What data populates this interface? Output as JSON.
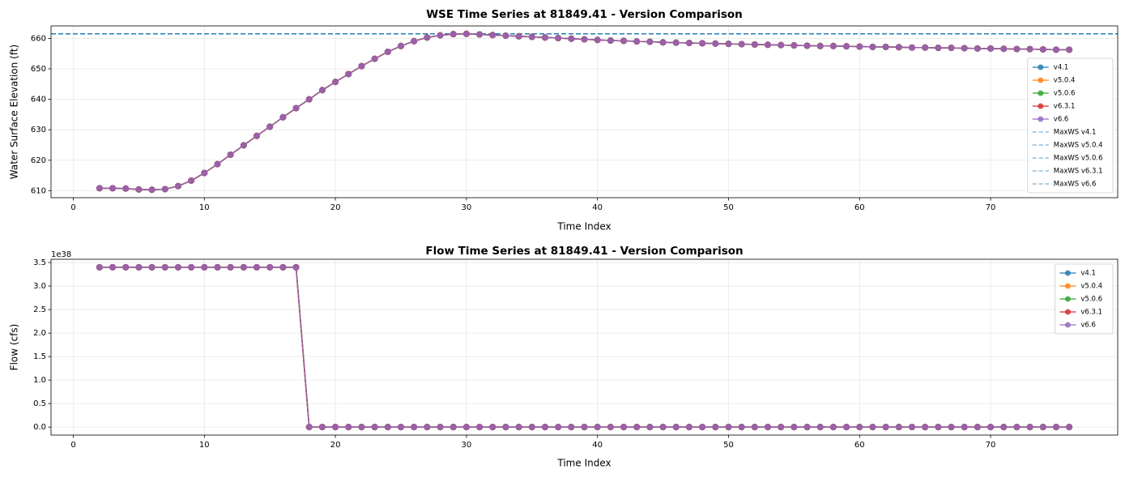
{
  "chart_data": [
    {
      "type": "line",
      "title": "WSE Time Series at 81849.41 - Version Comparison",
      "xlabel": "Time Index",
      "ylabel": "Water Surface Elevation (ft)",
      "x": [
        2,
        3,
        4,
        5,
        6,
        7,
        8,
        9,
        10,
        11,
        12,
        13,
        14,
        15,
        16,
        17,
        18,
        19,
        20,
        21,
        22,
        23,
        24,
        25,
        26,
        27,
        28,
        29,
        30,
        31,
        32,
        33,
        34,
        35,
        36,
        37,
        38,
        39,
        40,
        41,
        42,
        43,
        44,
        45,
        46,
        47,
        48,
        49,
        50,
        51,
        52,
        53,
        54,
        55,
        56,
        57,
        58,
        59,
        60,
        61,
        62,
        63,
        64,
        65,
        66,
        67,
        68,
        69,
        70,
        71,
        72,
        73,
        74,
        75,
        76
      ],
      "series": [
        {
          "name": "v4.1",
          "color": "#1f77b4",
          "values": [
            610.8,
            610.8,
            610.7,
            610.4,
            610.3,
            610.5,
            611.5,
            613.3,
            615.8,
            618.7,
            621.8,
            624.9,
            628.0,
            631.0,
            634.1,
            637.1,
            640.0,
            643.0,
            645.7,
            648.3,
            650.9,
            653.3,
            655.6,
            657.5,
            659.1,
            660.3,
            661.0,
            661.4,
            661.5,
            661.3,
            661.1,
            660.9,
            660.7,
            660.5,
            660.3,
            660.1,
            659.9,
            659.7,
            659.5,
            659.3,
            659.2,
            659.0,
            658.9,
            658.7,
            658.6,
            658.5,
            658.4,
            658.3,
            658.2,
            658.1,
            658.0,
            657.9,
            657.8,
            657.7,
            657.6,
            657.5,
            657.5,
            657.4,
            657.3,
            657.2,
            657.2,
            657.1,
            657.0,
            657.0,
            656.9,
            656.9,
            656.8,
            656.7,
            656.7,
            656.6,
            656.5,
            656.5,
            656.4,
            656.3,
            656.3
          ]
        },
        {
          "name": "v5.0.4",
          "color": "#ff7f0e",
          "values": [
            610.8,
            610.8,
            610.7,
            610.4,
            610.3,
            610.5,
            611.5,
            613.3,
            615.8,
            618.7,
            621.8,
            624.9,
            628.0,
            631.0,
            634.1,
            637.1,
            640.0,
            643.0,
            645.7,
            648.3,
            650.9,
            653.3,
            655.6,
            657.5,
            659.1,
            660.3,
            661.0,
            661.4,
            661.5,
            661.3,
            661.1,
            660.9,
            660.7,
            660.5,
            660.3,
            660.1,
            659.9,
            659.7,
            659.5,
            659.3,
            659.2,
            659.0,
            658.9,
            658.7,
            658.6,
            658.5,
            658.4,
            658.3,
            658.2,
            658.1,
            658.0,
            657.9,
            657.8,
            657.7,
            657.6,
            657.5,
            657.5,
            657.4,
            657.3,
            657.2,
            657.2,
            657.1,
            657.0,
            657.0,
            656.9,
            656.9,
            656.8,
            656.7,
            656.7,
            656.6,
            656.5,
            656.5,
            656.4,
            656.3,
            656.3
          ]
        },
        {
          "name": "v5.0.6",
          "color": "#2ca02c",
          "values": [
            610.8,
            610.8,
            610.7,
            610.4,
            610.3,
            610.5,
            611.5,
            613.3,
            615.8,
            618.7,
            621.8,
            624.9,
            628.0,
            631.0,
            634.1,
            637.1,
            640.0,
            643.0,
            645.7,
            648.3,
            650.9,
            653.3,
            655.6,
            657.5,
            659.1,
            660.3,
            661.0,
            661.4,
            661.5,
            661.3,
            661.1,
            660.9,
            660.7,
            660.5,
            660.3,
            660.1,
            659.9,
            659.7,
            659.5,
            659.3,
            659.2,
            659.0,
            658.9,
            658.7,
            658.6,
            658.5,
            658.4,
            658.3,
            658.2,
            658.1,
            658.0,
            657.9,
            657.8,
            657.7,
            657.6,
            657.5,
            657.5,
            657.4,
            657.3,
            657.2,
            657.2,
            657.1,
            657.0,
            657.0,
            656.9,
            656.9,
            656.8,
            656.7,
            656.7,
            656.6,
            656.5,
            656.5,
            656.4,
            656.3,
            656.3
          ]
        },
        {
          "name": "v6.3.1",
          "color": "#d62728",
          "values": [
            610.8,
            610.8,
            610.7,
            610.4,
            610.3,
            610.5,
            611.5,
            613.3,
            615.8,
            618.7,
            621.8,
            624.9,
            628.0,
            631.0,
            634.1,
            637.1,
            640.0,
            643.0,
            645.7,
            648.3,
            650.9,
            653.3,
            655.6,
            657.5,
            659.1,
            660.3,
            661.0,
            661.4,
            661.5,
            661.3,
            661.1,
            660.9,
            660.7,
            660.5,
            660.3,
            660.1,
            659.9,
            659.7,
            659.5,
            659.3,
            659.2,
            659.0,
            658.9,
            658.7,
            658.6,
            658.5,
            658.4,
            658.3,
            658.2,
            658.1,
            658.0,
            657.9,
            657.8,
            657.7,
            657.6,
            657.5,
            657.5,
            657.4,
            657.3,
            657.2,
            657.2,
            657.1,
            657.0,
            657.0,
            656.9,
            656.9,
            656.8,
            656.7,
            656.7,
            656.6,
            656.5,
            656.5,
            656.4,
            656.3,
            656.3
          ]
        },
        {
          "name": "v6.6",
          "color": "#9467bd",
          "values": [
            610.8,
            610.8,
            610.7,
            610.4,
            610.3,
            610.5,
            611.5,
            613.3,
            615.8,
            618.7,
            621.8,
            624.9,
            628.0,
            631.0,
            634.1,
            637.1,
            640.0,
            643.0,
            645.7,
            648.3,
            650.9,
            653.3,
            655.6,
            657.5,
            659.1,
            660.3,
            661.0,
            661.4,
            661.5,
            661.3,
            661.1,
            660.9,
            660.7,
            660.5,
            660.3,
            660.1,
            659.9,
            659.7,
            659.5,
            659.3,
            659.2,
            659.0,
            658.9,
            658.7,
            658.6,
            658.5,
            658.4,
            658.3,
            658.2,
            658.1,
            658.0,
            657.9,
            657.8,
            657.7,
            657.6,
            657.5,
            657.5,
            657.4,
            657.3,
            657.2,
            657.2,
            657.1,
            657.0,
            657.0,
            656.9,
            656.9,
            656.8,
            656.7,
            656.7,
            656.6,
            656.5,
            656.5,
            656.4,
            656.3,
            656.3
          ]
        }
      ],
      "hlines": [
        {
          "name": "MaxWS v4.1",
          "value": 661.5,
          "color": "#1f77b4"
        },
        {
          "name": "MaxWS v5.0.4",
          "value": 661.5,
          "color": "#1f77b4"
        },
        {
          "name": "MaxWS v5.0.6",
          "value": 661.5,
          "color": "#1f77b4"
        },
        {
          "name": "MaxWS v6.3.1",
          "value": 661.5,
          "color": "#1f77b4"
        },
        {
          "name": "MaxWS v6.6",
          "value": 661.5,
          "color": "#1f77b4"
        }
      ],
      "xlim": [
        -1.7,
        79.7
      ],
      "xticks": [
        0,
        10,
        20,
        30,
        40,
        50,
        60,
        70
      ],
      "ylim": [
        607.7,
        664.1
      ],
      "yticks": [
        610,
        620,
        630,
        640,
        650,
        660
      ],
      "grid": true,
      "legend": "lower right"
    },
    {
      "type": "line",
      "title": "Flow Time Series at 81849.41 - Version Comparison",
      "xlabel": "Time Index",
      "ylabel": "Flow (cfs)",
      "y_offset_label": "1e38",
      "x": [
        2,
        3,
        4,
        5,
        6,
        7,
        8,
        9,
        10,
        11,
        12,
        13,
        14,
        15,
        16,
        17,
        18,
        19,
        20,
        21,
        22,
        23,
        24,
        25,
        26,
        27,
        28,
        29,
        30,
        31,
        32,
        33,
        34,
        35,
        36,
        37,
        38,
        39,
        40,
        41,
        42,
        43,
        44,
        45,
        46,
        47,
        48,
        49,
        50,
        51,
        52,
        53,
        54,
        55,
        56,
        57,
        58,
        59,
        60,
        61,
        62,
        63,
        64,
        65,
        66,
        67,
        68,
        69,
        70,
        71,
        72,
        73,
        74,
        75,
        76
      ],
      "series": [
        {
          "name": "v4.1",
          "color": "#1f77b4",
          "values": [
            3.4e+38,
            3.4e+38,
            3.4e+38,
            3.4e+38,
            3.4e+38,
            3.4e+38,
            3.4e+38,
            3.4e+38,
            3.4e+38,
            3.4e+38,
            3.4e+38,
            3.4e+38,
            3.4e+38,
            3.4e+38,
            3.4e+38,
            3.4e+38,
            0,
            0,
            0,
            0,
            0,
            0,
            0,
            0,
            0,
            0,
            0,
            0,
            0,
            0,
            0,
            0,
            0,
            0,
            0,
            0,
            0,
            0,
            0,
            0,
            0,
            0,
            0,
            0,
            0,
            0,
            0,
            0,
            0,
            0,
            0,
            0,
            0,
            0,
            0,
            0,
            0,
            0,
            0,
            0,
            0,
            0,
            0,
            0,
            0,
            0,
            0,
            0,
            0,
            0,
            0,
            0,
            0,
            0,
            0
          ]
        },
        {
          "name": "v5.0.4",
          "color": "#ff7f0e",
          "values": [
            3.4e+38,
            3.4e+38,
            3.4e+38,
            3.4e+38,
            3.4e+38,
            3.4e+38,
            3.4e+38,
            3.4e+38,
            3.4e+38,
            3.4e+38,
            3.4e+38,
            3.4e+38,
            3.4e+38,
            3.4e+38,
            3.4e+38,
            3.4e+38,
            0,
            0,
            0,
            0,
            0,
            0,
            0,
            0,
            0,
            0,
            0,
            0,
            0,
            0,
            0,
            0,
            0,
            0,
            0,
            0,
            0,
            0,
            0,
            0,
            0,
            0,
            0,
            0,
            0,
            0,
            0,
            0,
            0,
            0,
            0,
            0,
            0,
            0,
            0,
            0,
            0,
            0,
            0,
            0,
            0,
            0,
            0,
            0,
            0,
            0,
            0,
            0,
            0,
            0,
            0,
            0,
            0,
            0,
            0
          ]
        },
        {
          "name": "v5.0.6",
          "color": "#2ca02c",
          "values": [
            3.4e+38,
            3.4e+38,
            3.4e+38,
            3.4e+38,
            3.4e+38,
            3.4e+38,
            3.4e+38,
            3.4e+38,
            3.4e+38,
            3.4e+38,
            3.4e+38,
            3.4e+38,
            3.4e+38,
            3.4e+38,
            3.4e+38,
            3.4e+38,
            0,
            0,
            0,
            0,
            0,
            0,
            0,
            0,
            0,
            0,
            0,
            0,
            0,
            0,
            0,
            0,
            0,
            0,
            0,
            0,
            0,
            0,
            0,
            0,
            0,
            0,
            0,
            0,
            0,
            0,
            0,
            0,
            0,
            0,
            0,
            0,
            0,
            0,
            0,
            0,
            0,
            0,
            0,
            0,
            0,
            0,
            0,
            0,
            0,
            0,
            0,
            0,
            0,
            0,
            0,
            0,
            0,
            0,
            0
          ]
        },
        {
          "name": "v6.3.1",
          "color": "#d62728",
          "values": [
            3.4e+38,
            3.4e+38,
            3.4e+38,
            3.4e+38,
            3.4e+38,
            3.4e+38,
            3.4e+38,
            3.4e+38,
            3.4e+38,
            3.4e+38,
            3.4e+38,
            3.4e+38,
            3.4e+38,
            3.4e+38,
            3.4e+38,
            3.4e+38,
            0,
            0,
            0,
            0,
            0,
            0,
            0,
            0,
            0,
            0,
            0,
            0,
            0,
            0,
            0,
            0,
            0,
            0,
            0,
            0,
            0,
            0,
            0,
            0,
            0,
            0,
            0,
            0,
            0,
            0,
            0,
            0,
            0,
            0,
            0,
            0,
            0,
            0,
            0,
            0,
            0,
            0,
            0,
            0,
            0,
            0,
            0,
            0,
            0,
            0,
            0,
            0,
            0,
            0,
            0,
            0,
            0,
            0,
            0
          ]
        },
        {
          "name": "v6.6",
          "color": "#9467bd",
          "values": [
            3.4e+38,
            3.4e+38,
            3.4e+38,
            3.4e+38,
            3.4e+38,
            3.4e+38,
            3.4e+38,
            3.4e+38,
            3.4e+38,
            3.4e+38,
            3.4e+38,
            3.4e+38,
            3.4e+38,
            3.4e+38,
            3.4e+38,
            3.4e+38,
            0,
            0,
            0,
            0,
            0,
            0,
            0,
            0,
            0,
            0,
            0,
            0,
            0,
            0,
            0,
            0,
            0,
            0,
            0,
            0,
            0,
            0,
            0,
            0,
            0,
            0,
            0,
            0,
            0,
            0,
            0,
            0,
            0,
            0,
            0,
            0,
            0,
            0,
            0,
            0,
            0,
            0,
            0,
            0,
            0,
            0,
            0,
            0,
            0,
            0,
            0,
            0,
            0,
            0,
            0,
            0,
            0,
            0,
            0
          ]
        }
      ],
      "xlim": [
        -1.7,
        79.7
      ],
      "xticks": [
        0,
        10,
        20,
        30,
        40,
        50,
        60,
        70
      ],
      "ylim": [
        -1.7e+37,
        3.57e+38
      ],
      "yticks": [
        {
          "value": 0,
          "label": "0.0"
        },
        {
          "value": 5e+37,
          "label": "0.5"
        },
        {
          "value": 1e+38,
          "label": "1.0"
        },
        {
          "value": 1.5e+38,
          "label": "1.5"
        },
        {
          "value": 2e+38,
          "label": "2.0"
        },
        {
          "value": 2.5e+38,
          "label": "2.5"
        },
        {
          "value": 3e+38,
          "label": "3.0"
        },
        {
          "value": 3.5e+38,
          "label": "3.5"
        }
      ],
      "grid": true,
      "legend": "upper right"
    }
  ]
}
